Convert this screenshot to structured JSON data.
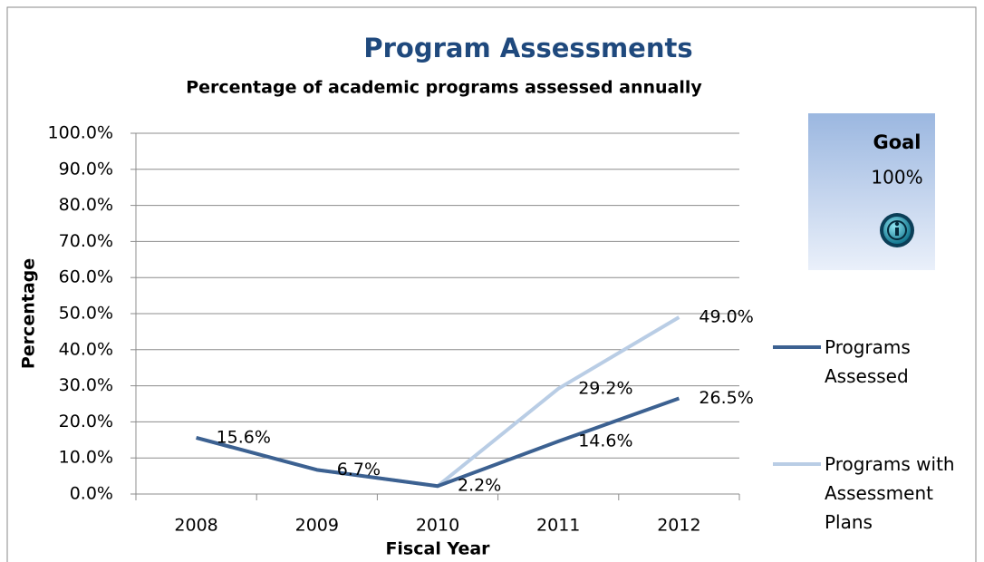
{
  "chart_data": {
    "type": "line",
    "title": "Program Assessments",
    "subtitle": "Percentage of academic programs assessed annually",
    "x_label": "Fiscal Year",
    "y_label": "Percentage",
    "categories": [
      "2008",
      "2009",
      "2010",
      "2011",
      "2012"
    ],
    "series": [
      {
        "name": "Programs Assessed",
        "color": "#3c6191",
        "values": [
          15.6,
          6.7,
          2.2,
          14.6,
          26.5
        ],
        "value_labels": [
          "15.6%",
          "6.7%",
          "2.2%",
          "14.6%",
          "26.5%"
        ]
      },
      {
        "name": "Programs with Assessment Plans",
        "color": "#b9cde5",
        "values": [
          15.6,
          6.7,
          2.2,
          29.2,
          49.0
        ],
        "value_labels": [
          null,
          null,
          null,
          "29.2%",
          "49.0%"
        ]
      }
    ],
    "ylim": [
      0,
      100
    ],
    "yticks": [
      {
        "value": 0,
        "label": "0.0%"
      },
      {
        "value": 10,
        "label": "10.0%"
      },
      {
        "value": 20,
        "label": "20.0%"
      },
      {
        "value": 30,
        "label": "30.0%"
      },
      {
        "value": 40,
        "label": "40.0%"
      },
      {
        "value": 50,
        "label": "50.0%"
      },
      {
        "value": 60,
        "label": "60.0%"
      },
      {
        "value": 70,
        "label": "70.0%"
      },
      {
        "value": 80,
        "label": "80.0%"
      },
      {
        "value": 90,
        "label": "90.0%"
      },
      {
        "value": 100,
        "label": "100.0%"
      }
    ],
    "grid": true,
    "legend": "right",
    "goal_box": {
      "title": "Goal",
      "value": "100%"
    }
  }
}
